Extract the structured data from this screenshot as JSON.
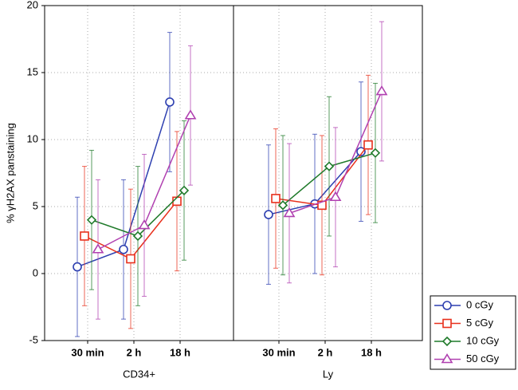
{
  "chart_data": [
    {
      "type": "line",
      "x_label": "CD34+",
      "y_label": "% γH2AX panstaining",
      "categories": [
        "30 min",
        "2 h",
        "18 h"
      ],
      "ylim": [
        -5,
        20
      ],
      "yticks": [
        -5,
        0,
        5,
        10,
        15,
        20
      ],
      "grid": true,
      "legend": "lower right outside",
      "series": [
        {
          "name": "0 cGy",
          "color": "#2d3fb0",
          "marker": "circle",
          "values": [
            0.5,
            1.8,
            12.8
          ],
          "errors": [
            5.2,
            5.2,
            5.2
          ]
        },
        {
          "name": "5 cGy",
          "color": "#e8301c",
          "marker": "square",
          "values": [
            2.8,
            1.1,
            5.4
          ],
          "errors": [
            5.2,
            5.2,
            5.2
          ]
        },
        {
          "name": "10 cGy",
          "color": "#1f7a2a",
          "marker": "diamond",
          "values": [
            4.0,
            2.8,
            6.2
          ],
          "errors": [
            5.2,
            5.2,
            5.2
          ]
        },
        {
          "name": "50 cGy",
          "color": "#b040b0",
          "marker": "triangle",
          "values": [
            1.8,
            3.6,
            11.8
          ],
          "errors": [
            5.2,
            5.3,
            5.2
          ]
        }
      ]
    },
    {
      "type": "line",
      "x_label": "Ly",
      "categories": [
        "30 min",
        "2 h",
        "18 h"
      ],
      "ylim": [
        -5,
        20
      ],
      "yticks": [
        -5,
        0,
        5,
        10,
        15,
        20
      ],
      "grid": true,
      "series": [
        {
          "name": "0 cGy",
          "color": "#2d3fb0",
          "marker": "circle",
          "values": [
            4.4,
            5.2,
            9.1
          ],
          "errors": [
            5.2,
            5.2,
            5.2
          ]
        },
        {
          "name": "5 cGy",
          "color": "#e8301c",
          "marker": "square",
          "values": [
            5.6,
            5.1,
            9.6
          ],
          "errors": [
            5.2,
            5.2,
            5.2
          ]
        },
        {
          "name": "10 cGy",
          "color": "#1f7a2a",
          "marker": "diamond",
          "values": [
            5.1,
            8.0,
            9.0
          ],
          "errors": [
            5.2,
            5.2,
            5.2
          ]
        },
        {
          "name": "50 cGy",
          "color": "#b040b0",
          "marker": "triangle",
          "values": [
            4.5,
            5.7,
            13.6
          ],
          "errors": [
            5.2,
            5.2,
            5.2
          ]
        }
      ]
    }
  ]
}
